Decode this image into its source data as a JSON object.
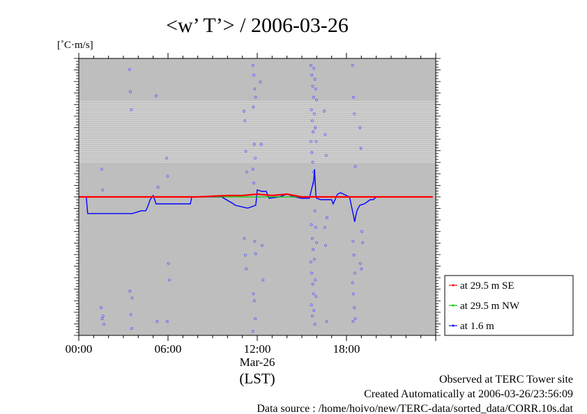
{
  "chart_data": {
    "type": "line",
    "title": "<w’ T’> / 2006-03-26",
    "ylabel": "[˚C·m/s]",
    "xlabel": "(LST)",
    "date_label": "Mar-26",
    "x_tick_labels": [
      "00:00",
      "06:00",
      "12:00",
      "18:00"
    ],
    "x_ticks_hours": [
      0,
      6,
      12,
      18
    ],
    "xlim": [
      0,
      24
    ],
    "ylim": [
      -1.0,
      1.0
    ],
    "grid": true,
    "legend_position": "bottom-right outside",
    "background_color": "#bebebe",
    "series": [
      {
        "name": "at 29.5 m SE",
        "color": "#ff0000",
        "x": [
          0,
          2,
          4,
          6,
          8,
          10,
          11,
          12,
          13,
          14,
          15,
          16,
          17,
          18,
          19,
          20,
          22,
          23.8
        ],
        "y": [
          0.0,
          0.0,
          0.0,
          0.0,
          0.0,
          0.01,
          0.01,
          0.02,
          0.01,
          0.02,
          0.0,
          0.0,
          0.0,
          0.0,
          0.0,
          0.0,
          0.0,
          0.0
        ]
      },
      {
        "name": "at 29.5 m NW",
        "color": "#00cc00",
        "x": [
          0,
          6,
          12,
          18,
          23.8
        ],
        "y": [
          0.0,
          0.0,
          0.0,
          0.0,
          0.0
        ]
      },
      {
        "name": "at 1.6 m",
        "color": "#0000ff",
        "x": [
          0,
          0.5,
          0.6,
          1.5,
          3.0,
          3.6,
          4.2,
          4.5,
          4.6,
          4.8,
          5.0,
          5.2,
          7.5,
          7.6,
          9.6,
          10.4,
          10.5,
          11.3,
          11.4,
          11.9,
          12.0,
          12.3,
          12.6,
          12.8,
          13.5,
          14.0,
          14.5,
          15.0,
          15.5,
          15.8,
          15.85,
          15.95,
          16.0,
          16.3,
          17.0,
          17.1,
          17.4,
          17.6,
          18.0,
          18.2,
          18.5,
          18.55,
          18.7,
          18.9,
          19.2,
          19.6,
          19.8,
          20.0,
          20.2,
          23.8
        ],
        "y": [
          0.0,
          0.0,
          -0.12,
          -0.12,
          -0.12,
          -0.12,
          -0.1,
          -0.1,
          -0.08,
          -0.02,
          0.01,
          -0.05,
          -0.05,
          0.0,
          0.0,
          -0.05,
          -0.06,
          -0.08,
          -0.08,
          -0.06,
          0.05,
          0.04,
          0.04,
          -0.01,
          0.0,
          0.02,
          0.0,
          -0.01,
          -0.01,
          0.12,
          0.2,
          0.0,
          -0.01,
          -0.02,
          -0.02,
          -0.05,
          0.02,
          0.03,
          0.01,
          0.0,
          -0.15,
          -0.18,
          -0.1,
          -0.06,
          -0.05,
          -0.02,
          -0.02,
          0.0,
          0.0,
          0.0
        ]
      }
    ]
  },
  "footer": {
    "line1": "Observed at TERC Tower site",
    "line2": "Created Automatically at 2006-03-26/23:56:09",
    "line3": "Data source : /home/hoivo/new/TERC-data/sorted_data/CORR.10s.dat"
  }
}
